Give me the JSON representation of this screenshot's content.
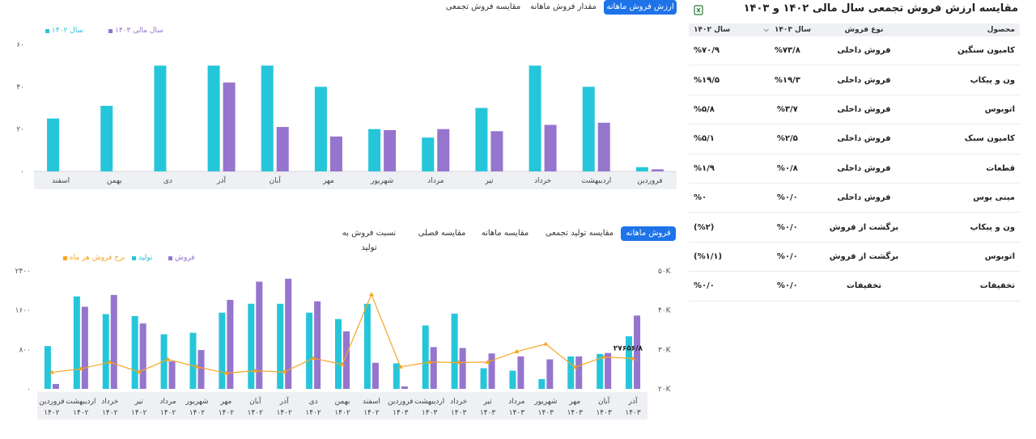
{
  "top_tabs": [
    "مقایسه فروش تجمعی",
    "مقدار فروش ماهانه",
    "ارزش فروش ماهانه"
  ],
  "top_active": 2,
  "bottom_tabs": [
    "نسبت فروش به تولید",
    "مقایسه فصلی",
    "مقایسه ماهانه",
    "مقایسه تولید تجمعی",
    "فروش ماهانه"
  ],
  "bottom_active": 4,
  "table": {
    "title": "مقایسه ارزش فروش تجمعی سال مالی ۱۴۰۲ و ۱۴۰۳",
    "headers": [
      "محصول",
      "نوع فروش",
      "سال ۱۴۰۳",
      "سال ۱۴۰۲"
    ],
    "rows": [
      [
        "کامیون سنگین",
        "فروش داخلی",
        "%۷۳/۸",
        "%۷۰/۹"
      ],
      [
        "ون و پیکاپ",
        "فروش داخلی",
        "%۱۹/۳",
        "%۱۹/۵"
      ],
      [
        "اتوبوس",
        "فروش داخلی",
        "%۳/۷",
        "%۵/۸"
      ],
      [
        "کامیون سبک",
        "فروش داخلی",
        "%۲/۵",
        "%۵/۱"
      ],
      [
        "قطعات",
        "فروش داخلی",
        "%۰/۸",
        "%۱/۹"
      ],
      [
        "مینی بوس",
        "فروش داخلی",
        "%۰/۰",
        "%۰"
      ],
      [
        "ون و پیکاپ",
        "برگشت از فروش",
        "%۰/۰",
        "(%۲)"
      ],
      [
        "اتوبوس",
        "برگشت از فروش",
        "%۰/۰",
        "(%۱/۱)"
      ],
      [
        "تخفیفات",
        "تخفیفات",
        "%۰/۰",
        "%۰/۰"
      ]
    ]
  },
  "colors": {
    "teal": "#26c6da",
    "purple": "#9575cd",
    "orange": "#f5a623",
    "accent": "#1e73e8"
  },
  "chart_data": [
    {
      "type": "bar",
      "categories": [
        "فروردین",
        "اردیبهشت",
        "خرداد",
        "تیر",
        "مرداد",
        "شهریور",
        "مهر",
        "آبان",
        "آذر",
        "دی",
        "بهمن",
        "اسفند"
      ],
      "series": [
        {
          "name": "سال ۱۴۰۲",
          "color": "#26c6da",
          "values": [
            2,
            40,
            50,
            30,
            16,
            20,
            40,
            50,
            50,
            50,
            31,
            25
          ]
        },
        {
          "name": "سال مالی ۱۴۰۳",
          "color": "#9575cd",
          "values": [
            1,
            23,
            22,
            19,
            20,
            19.5,
            16.5,
            21,
            42,
            null,
            null,
            null
          ]
        }
      ],
      "ylim": [
        0,
        60
      ],
      "yticks": [
        "۰",
        "۲۰",
        "۴۰",
        "۶۰"
      ],
      "legend": "top-left",
      "grid": false
    },
    {
      "type": "bar",
      "categories": [
        "فروردین ۱۴۰۲",
        "اردیبهشت ۱۴۰۲",
        "خرداد ۱۴۰۲",
        "تیر ۱۴۰۲",
        "مرداد ۱۴۰۲",
        "شهریور ۱۴۰۲",
        "مهر ۱۴۰۲",
        "آبان ۱۴۰۲",
        "آذر ۱۴۰۲",
        "دی ۱۴۰۲",
        "بهمن ۱۴۰۲",
        "اسفند ۱۴۰۲",
        "فروردین ۱۴۰۳",
        "اردیبهشت ۱۴۰۳",
        "خرداد ۱۴۰۳",
        "تیر ۱۴۰۳",
        "مرداد ۱۴۰۳",
        "شهریور ۱۴۰۳",
        "مهر ۱۴۰۳",
        "آبان ۱۴۰۳",
        "آذر ۱۴۰۳"
      ],
      "series": [
        {
          "name": "تولید",
          "color": "#26c6da",
          "values": [
            870,
            1880,
            1520,
            1480,
            1110,
            1140,
            1550,
            1730,
            1730,
            1550,
            1420,
            1730,
            520,
            1290,
            1530,
            420,
            370,
            200,
            660,
            710,
            1070
          ]
        },
        {
          "name": "فروش",
          "color": "#9575cd",
          "values": [
            100,
            1670,
            1910,
            1330,
            560,
            790,
            1810,
            2180,
            2240,
            1780,
            1170,
            530,
            50,
            850,
            830,
            720,
            660,
            600,
            660,
            730,
            1490
          ]
        },
        {
          "name": "نرخ فروش هر ماه",
          "color": "#f5a623",
          "type": "line",
          "axis": "right",
          "values": [
            24200,
            25100,
            26800,
            24300,
            27500,
            25600,
            24000,
            24600,
            24300,
            27800,
            26200,
            44000,
            25600,
            26800,
            26700,
            26800,
            29500,
            31400,
            25500,
            28100,
            27700
          ]
        }
      ],
      "annotation": "۲۷۶۵۶/۸",
      "ylim_left": [
        0,
        2400
      ],
      "yticks_left": [
        "۰",
        "۸۰۰",
        "۱۶۰۰",
        "۲۴۰۰"
      ],
      "ylim_right": [
        20000,
        50000
      ],
      "yticks_right": [
        "۲۰K",
        "۳۰K",
        "۴۰K",
        "۵۰K"
      ],
      "legend": "top-left",
      "grid": false
    }
  ]
}
